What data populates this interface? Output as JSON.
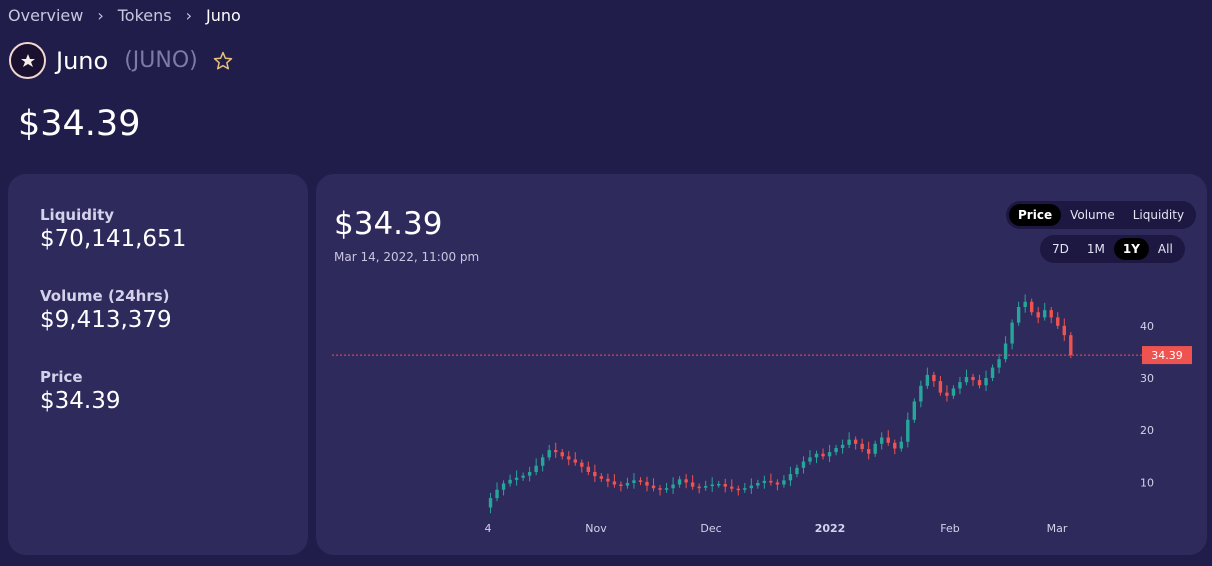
{
  "breadcrumb": {
    "items": [
      "Overview",
      "Tokens",
      "Juno"
    ]
  },
  "token": {
    "name": "Juno",
    "symbol": "(JUNO)",
    "price": "$34.39",
    "star_color": "#e8c27a"
  },
  "stats": {
    "liquidity_label": "Liquidity",
    "liquidity_value": "$70,141,651",
    "volume_label": "Volume (24hrs)",
    "volume_value": "$9,413,379",
    "price_label": "Price",
    "price_value": "$34.39"
  },
  "chart_panel": {
    "price": "$34.39",
    "date": "Mar 14, 2022, 11:00 pm",
    "metric_tabs": [
      {
        "label": "Price",
        "active": true
      },
      {
        "label": "Volume",
        "active": false
      },
      {
        "label": "Liquidity",
        "active": false
      }
    ],
    "range_tabs": [
      {
        "label": "7D",
        "active": false
      },
      {
        "label": "1M",
        "active": false
      },
      {
        "label": "1Y",
        "active": true
      },
      {
        "label": "All",
        "active": false
      }
    ]
  },
  "chart_data": {
    "type": "candlestick",
    "x_ticks": [
      "4",
      "Nov",
      "Dec",
      "2022",
      "Feb",
      "Mar"
    ],
    "y_ticks": [
      10,
      20,
      30,
      40
    ],
    "ylim": [
      3,
      48
    ],
    "current_price_label": "34.39",
    "current_price": 34.39,
    "colors": {
      "up": "#26a69a",
      "down": "#ef5350",
      "price_line": "#ef5350"
    },
    "series": [
      {
        "name": "",
        "points": [
          [
            0.0,
            5.2
          ],
          [
            0.01,
            7.0
          ],
          [
            0.02,
            8.6
          ],
          [
            0.03,
            9.8
          ],
          [
            0.04,
            10.5
          ],
          [
            0.05,
            10.9
          ],
          [
            0.06,
            11.3
          ],
          [
            0.07,
            12.0
          ],
          [
            0.08,
            13.2
          ],
          [
            0.09,
            14.8
          ],
          [
            0.1,
            16.2
          ],
          [
            0.11,
            15.8
          ],
          [
            0.12,
            15.0
          ],
          [
            0.13,
            14.4
          ],
          [
            0.14,
            13.8
          ],
          [
            0.15,
            13.0
          ],
          [
            0.16,
            12.0
          ],
          [
            0.17,
            11.2
          ],
          [
            0.18,
            10.7
          ],
          [
            0.19,
            10.2
          ],
          [
            0.2,
            9.6
          ],
          [
            0.21,
            9.4
          ],
          [
            0.22,
            9.9
          ],
          [
            0.23,
            10.4
          ],
          [
            0.24,
            10.1
          ],
          [
            0.25,
            9.4
          ],
          [
            0.26,
            8.9
          ],
          [
            0.27,
            8.6
          ],
          [
            0.28,
            8.9
          ],
          [
            0.29,
            9.6
          ],
          [
            0.3,
            10.6
          ],
          [
            0.31,
            10.0
          ],
          [
            0.32,
            9.2
          ],
          [
            0.33,
            9.0
          ],
          [
            0.34,
            9.3
          ],
          [
            0.35,
            9.6
          ],
          [
            0.36,
            9.7
          ],
          [
            0.37,
            9.2
          ],
          [
            0.38,
            8.8
          ],
          [
            0.39,
            8.6
          ],
          [
            0.4,
            8.9
          ],
          [
            0.41,
            9.4
          ],
          [
            0.42,
            9.9
          ],
          [
            0.43,
            10.3
          ],
          [
            0.44,
            10.0
          ],
          [
            0.45,
            9.6
          ],
          [
            0.46,
            10.4
          ],
          [
            0.47,
            11.6
          ],
          [
            0.48,
            12.8
          ],
          [
            0.49,
            14.0
          ],
          [
            0.5,
            14.8
          ],
          [
            0.51,
            15.5
          ],
          [
            0.52,
            15.0
          ],
          [
            0.53,
            15.8
          ],
          [
            0.54,
            16.6
          ],
          [
            0.55,
            17.2
          ],
          [
            0.56,
            18.2
          ],
          [
            0.57,
            17.4
          ],
          [
            0.58,
            16.4
          ],
          [
            0.59,
            15.5
          ],
          [
            0.6,
            17.4
          ],
          [
            0.61,
            18.6
          ],
          [
            0.62,
            17.6
          ],
          [
            0.63,
            16.5
          ],
          [
            0.64,
            17.8
          ],
          [
            0.65,
            22.0
          ],
          [
            0.66,
            25.5
          ],
          [
            0.67,
            28.5
          ],
          [
            0.68,
            30.6
          ],
          [
            0.69,
            29.4
          ],
          [
            0.7,
            27.2
          ],
          [
            0.71,
            26.6
          ],
          [
            0.72,
            28.0
          ],
          [
            0.73,
            29.2
          ],
          [
            0.74,
            30.2
          ],
          [
            0.75,
            29.6
          ],
          [
            0.76,
            28.6
          ],
          [
            0.77,
            30.0
          ],
          [
            0.78,
            32.0
          ],
          [
            0.79,
            33.6
          ],
          [
            0.8,
            36.6
          ],
          [
            0.81,
            40.6
          ],
          [
            0.82,
            43.6
          ],
          [
            0.83,
            44.6
          ],
          [
            0.84,
            42.6
          ],
          [
            0.85,
            41.6
          ],
          [
            0.86,
            43.0
          ],
          [
            0.87,
            41.6
          ],
          [
            0.88,
            40.0
          ],
          [
            0.89,
            38.2
          ],
          [
            0.9,
            34.4
          ]
        ]
      }
    ]
  }
}
